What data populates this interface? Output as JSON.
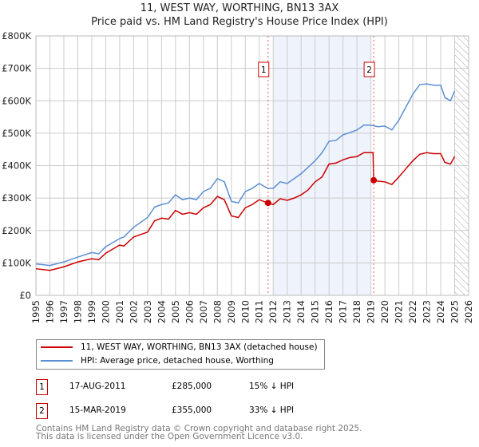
{
  "chart_data": {
    "type": "line",
    "title": "11, WEST WAY, WORTHING, BN13 3AX",
    "subtitle": "Price paid vs. HM Land Registry's House Price Index (HPI)",
    "xlim": [
      1995,
      2026
    ],
    "ylim": [
      0,
      800000
    ],
    "yticks": [
      {
        "v": 0,
        "label": "£0"
      },
      {
        "v": 100000,
        "label": "£100K"
      },
      {
        "v": 200000,
        "label": "£200K"
      },
      {
        "v": 300000,
        "label": "£300K"
      },
      {
        "v": 400000,
        "label": "£400K"
      },
      {
        "v": 500000,
        "label": "£500K"
      },
      {
        "v": 600000,
        "label": "£600K"
      },
      {
        "v": 700000,
        "label": "£700K"
      },
      {
        "v": 800000,
        "label": "£800K"
      }
    ],
    "xticks": [
      "1995",
      "1996",
      "1997",
      "1998",
      "1999",
      "2000",
      "2001",
      "2002",
      "2003",
      "2004",
      "2005",
      "2006",
      "2007",
      "2008",
      "2009",
      "2010",
      "2011",
      "2012",
      "2013",
      "2014",
      "2015",
      "2016",
      "2017",
      "2018",
      "2019",
      "2020",
      "2021",
      "2022",
      "2023",
      "2024",
      "2025",
      "2026"
    ],
    "shaded_range": [
      2012,
      2019
    ],
    "hatched_from": 2025,
    "series": [
      {
        "name": "11, WEST WAY, WORTHING, BN13 3AX (detached house)",
        "color": "#cc0000",
        "x": [
          1995,
          1996,
          1997,
          1998,
          1999,
          1999.5,
          2000,
          2001,
          2001.3,
          2002,
          2003,
          2003.5,
          2004,
          2004.5,
          2005,
          2005.5,
          2006,
          2006.5,
          2007,
          2007.5,
          2008,
          2008.5,
          2009,
          2009.5,
          2010,
          2010.5,
          2011,
          2011.6,
          2012,
          2012.5,
          2013,
          2013.5,
          2014,
          2014.5,
          2015,
          2015.5,
          2016,
          2016.5,
          2017,
          2017.5,
          2018,
          2018.5,
          2019.15,
          2019.2,
          2019.5,
          2020,
          2020.5,
          2021,
          2021.5,
          2022,
          2022.5,
          2023,
          2023.5,
          2024,
          2024.3,
          2024.7,
          2025
        ],
        "y": [
          82000,
          77000,
          88000,
          103000,
          113000,
          110000,
          130000,
          155000,
          152000,
          180000,
          195000,
          230000,
          238000,
          235000,
          262000,
          250000,
          255000,
          250000,
          270000,
          280000,
          305000,
          295000,
          245000,
          240000,
          270000,
          280000,
          295000,
          285000,
          280000,
          298000,
          293000,
          300000,
          310000,
          325000,
          350000,
          365000,
          405000,
          408000,
          418000,
          425000,
          428000,
          440000,
          440000,
          355000,
          352000,
          350000,
          342000,
          365000,
          390000,
          415000,
          435000,
          440000,
          437000,
          437000,
          410000,
          405000,
          428000
        ]
      },
      {
        "name": "HPI: Average price, detached house, Worthing",
        "color": "#5b8fd4",
        "x": [
          1995,
          1996,
          1997,
          1998,
          1999,
          1999.5,
          2000,
          2001,
          2001.3,
          2002,
          2003,
          2003.5,
          2004,
          2004.5,
          2005,
          2005.5,
          2006,
          2006.5,
          2007,
          2007.5,
          2008,
          2008.5,
          2009,
          2009.5,
          2010,
          2010.5,
          2011,
          2011.6,
          2012,
          2012.5,
          2013,
          2013.5,
          2014,
          2014.5,
          2015,
          2015.5,
          2016,
          2016.5,
          2017,
          2017.5,
          2018,
          2018.5,
          2019,
          2019.5,
          2020,
          2020.5,
          2021,
          2021.5,
          2022,
          2022.5,
          2023,
          2023.5,
          2024,
          2024.3,
          2024.7,
          2025
        ],
        "y": [
          97000,
          92000,
          103000,
          118000,
          132000,
          128000,
          150000,
          175000,
          180000,
          210000,
          240000,
          272000,
          280000,
          285000,
          310000,
          295000,
          300000,
          295000,
          320000,
          330000,
          360000,
          350000,
          290000,
          285000,
          320000,
          330000,
          345000,
          330000,
          330000,
          350000,
          345000,
          360000,
          375000,
          395000,
          415000,
          440000,
          475000,
          478000,
          495000,
          502000,
          510000,
          525000,
          525000,
          520000,
          522000,
          510000,
          540000,
          580000,
          620000,
          650000,
          652000,
          648000,
          648000,
          610000,
          600000,
          630000
        ]
      }
    ],
    "sales": [
      {
        "id": "1",
        "x": 2011.63,
        "price": 285000,
        "date": "17-AUG-2011",
        "price_label": "£285,000",
        "hpi_diff": "15% ↓ HPI"
      },
      {
        "id": "2",
        "x": 2019.2,
        "price": 355000,
        "date": "15-MAR-2019",
        "price_label": "£355,000",
        "hpi_diff": "33% ↓ HPI"
      }
    ]
  },
  "footer": {
    "line1": "Contains HM Land Registry data © Crown copyright and database right 2025.",
    "line2": "This data is licensed under the Open Government Licence v3.0."
  }
}
